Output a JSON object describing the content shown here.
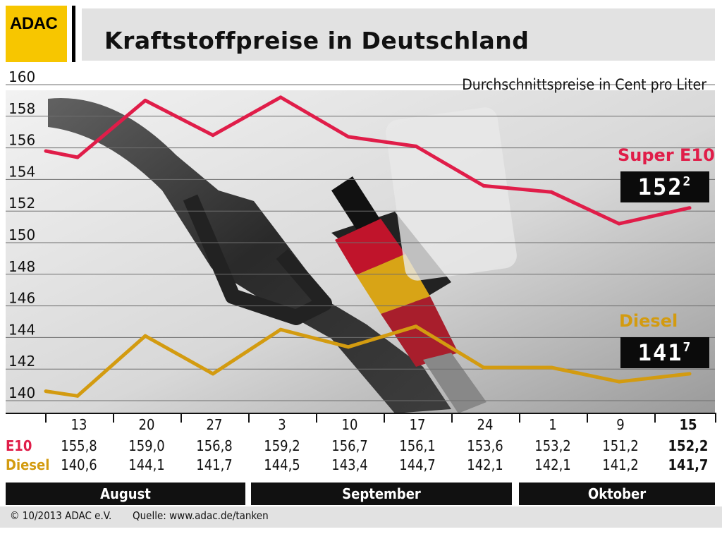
{
  "header": {
    "logo_text": "ADAC",
    "title": "Kraftstoffpreise in Deutschland",
    "subtitle": "Durchschnittspreise in Cent pro Liter"
  },
  "legend": {
    "e10_label": "Super E10",
    "e10_display": "152",
    "e10_display_decimal": "2",
    "diesel_label": "Diesel",
    "diesel_display": "141",
    "diesel_display_decimal": "7"
  },
  "table": {
    "row_e10_label": "E10",
    "row_diesel_label": "Diesel",
    "dates": [
      "13",
      "20",
      "27",
      "3",
      "10",
      "17",
      "24",
      "1",
      "9",
      "15"
    ],
    "e10": [
      "155,8",
      "159,0",
      "156,8",
      "159,2",
      "156,7",
      "156,1",
      "153,6",
      "153,2",
      "151,2",
      "152,2"
    ],
    "diesel": [
      "140,6",
      "144,1",
      "141,7",
      "144,5",
      "143,4",
      "144,7",
      "142,1",
      "142,1",
      "141,2",
      "141,7"
    ],
    "months": [
      "August",
      "September",
      "Oktober"
    ]
  },
  "footer": {
    "copyright": "© 10/2013  ADAC e.V.",
    "source": "Quelle: www.adac.de/tanken"
  },
  "colors": {
    "e10": "#e01d49",
    "diesel": "#d39b10",
    "logo": "#f7c600"
  },
  "chart_data": {
    "type": "line",
    "title": "Kraftstoffpreise in Deutschland",
    "subtitle": "Durchschnittspreise in Cent pro Liter",
    "ylim": [
      140,
      160
    ],
    "yticks": [
      160,
      158,
      156,
      154,
      152,
      150,
      148,
      146,
      144,
      142,
      140
    ],
    "grid": true,
    "series": [
      {
        "name": "Super E10",
        "points": [
          155.8,
          155.4,
          159.0,
          156.8,
          159.2,
          156.7,
          156.1,
          153.6,
          153.2,
          151.2,
          152.2
        ]
      },
      {
        "name": "Diesel",
        "points": [
          140.6,
          140.3,
          144.1,
          141.7,
          144.5,
          143.4,
          144.7,
          142.1,
          142.1,
          141.2,
          141.7
        ]
      }
    ]
  }
}
